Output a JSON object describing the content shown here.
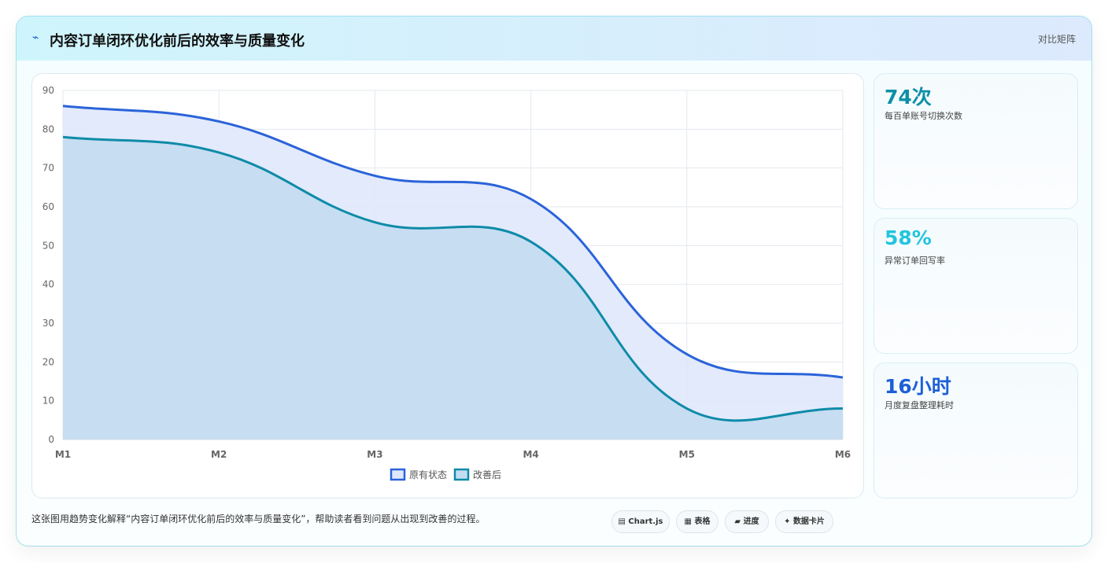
{
  "header": {
    "title": "内容订单闭环优化前后的效率与质量变化",
    "badge": "对比矩阵"
  },
  "chart_data": {
    "type": "line",
    "categories": [
      "M1",
      "M2",
      "M3",
      "M4",
      "M5",
      "M6"
    ],
    "series": [
      {
        "name": "原有状态",
        "color": "#2b63d9",
        "fill": "#dfe8fb",
        "values": [
          86,
          82,
          68,
          62,
          22,
          16
        ]
      },
      {
        "name": "改善后",
        "color": "#0e8ba8",
        "fill": "#c4dcf1",
        "values": [
          78,
          74,
          56,
          51,
          8,
          8
        ]
      }
    ],
    "ylim": [
      0,
      90
    ],
    "yticks": [
      0,
      10,
      20,
      30,
      40,
      50,
      60,
      70,
      80,
      90
    ],
    "grid": true,
    "legend": "bottom"
  },
  "cards": [
    {
      "value": "74次",
      "label": "每百单账号切换次数",
      "color": "#0e8fa8"
    },
    {
      "value": "58%",
      "label": "异常订单回写率",
      "color": "#22c5dd"
    },
    {
      "value": "16小时",
      "label": "月度复盘整理耗时",
      "color": "#1d5fd6"
    }
  ],
  "footer": {
    "text": "这张图用趋势变化解释“内容订单闭环优化前后的效率与质量变化”，帮助读者看到问题从出现到改善的过程。",
    "buttons": [
      "Chart.js",
      "表格",
      "进度",
      "数据卡片"
    ]
  }
}
